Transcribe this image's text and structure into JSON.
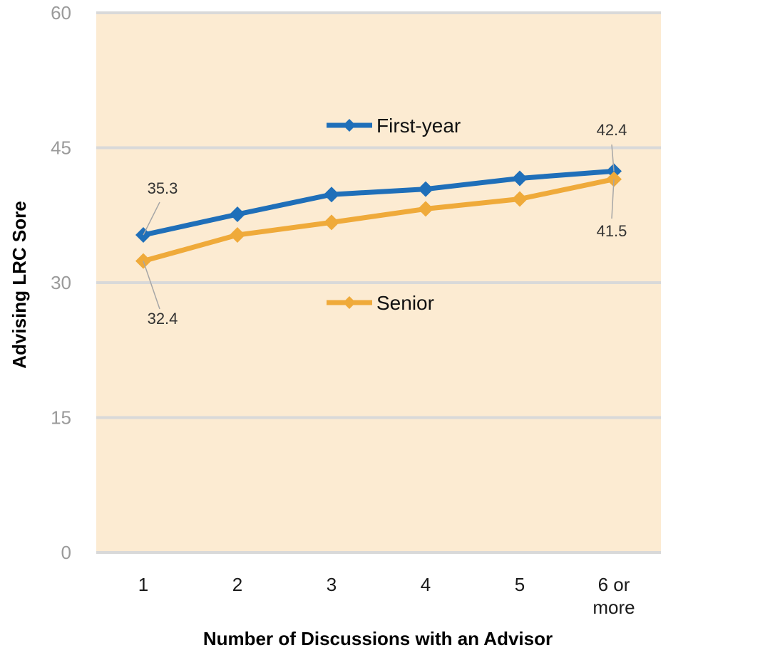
{
  "chart_data": {
    "type": "line",
    "title": "",
    "xlabel": "Number of Discussions with an Advisor",
    "ylabel": "Advising LRC Sore",
    "categories": [
      "1",
      "2",
      "3",
      "4",
      "5",
      "6 or more"
    ],
    "ylim": [
      0,
      60
    ],
    "yticks": [
      0,
      15,
      30,
      45,
      60
    ],
    "grid": true,
    "plot_background": "#fcebd2",
    "series": [
      {
        "name": "First-year",
        "color": "#1f6fb9",
        "values": [
          35.3,
          37.6,
          39.8,
          40.4,
          41.6,
          42.4
        ],
        "labels": [
          {
            "index": 0,
            "text": "35.3"
          },
          {
            "index": 5,
            "text": "42.4"
          }
        ]
      },
      {
        "name": "Senior",
        "color": "#efaa3a",
        "values": [
          32.4,
          35.3,
          36.7,
          38.2,
          39.3,
          41.5
        ],
        "labels": [
          {
            "index": 0,
            "text": "32.4"
          },
          {
            "index": 5,
            "text": "41.5"
          }
        ]
      }
    ]
  }
}
